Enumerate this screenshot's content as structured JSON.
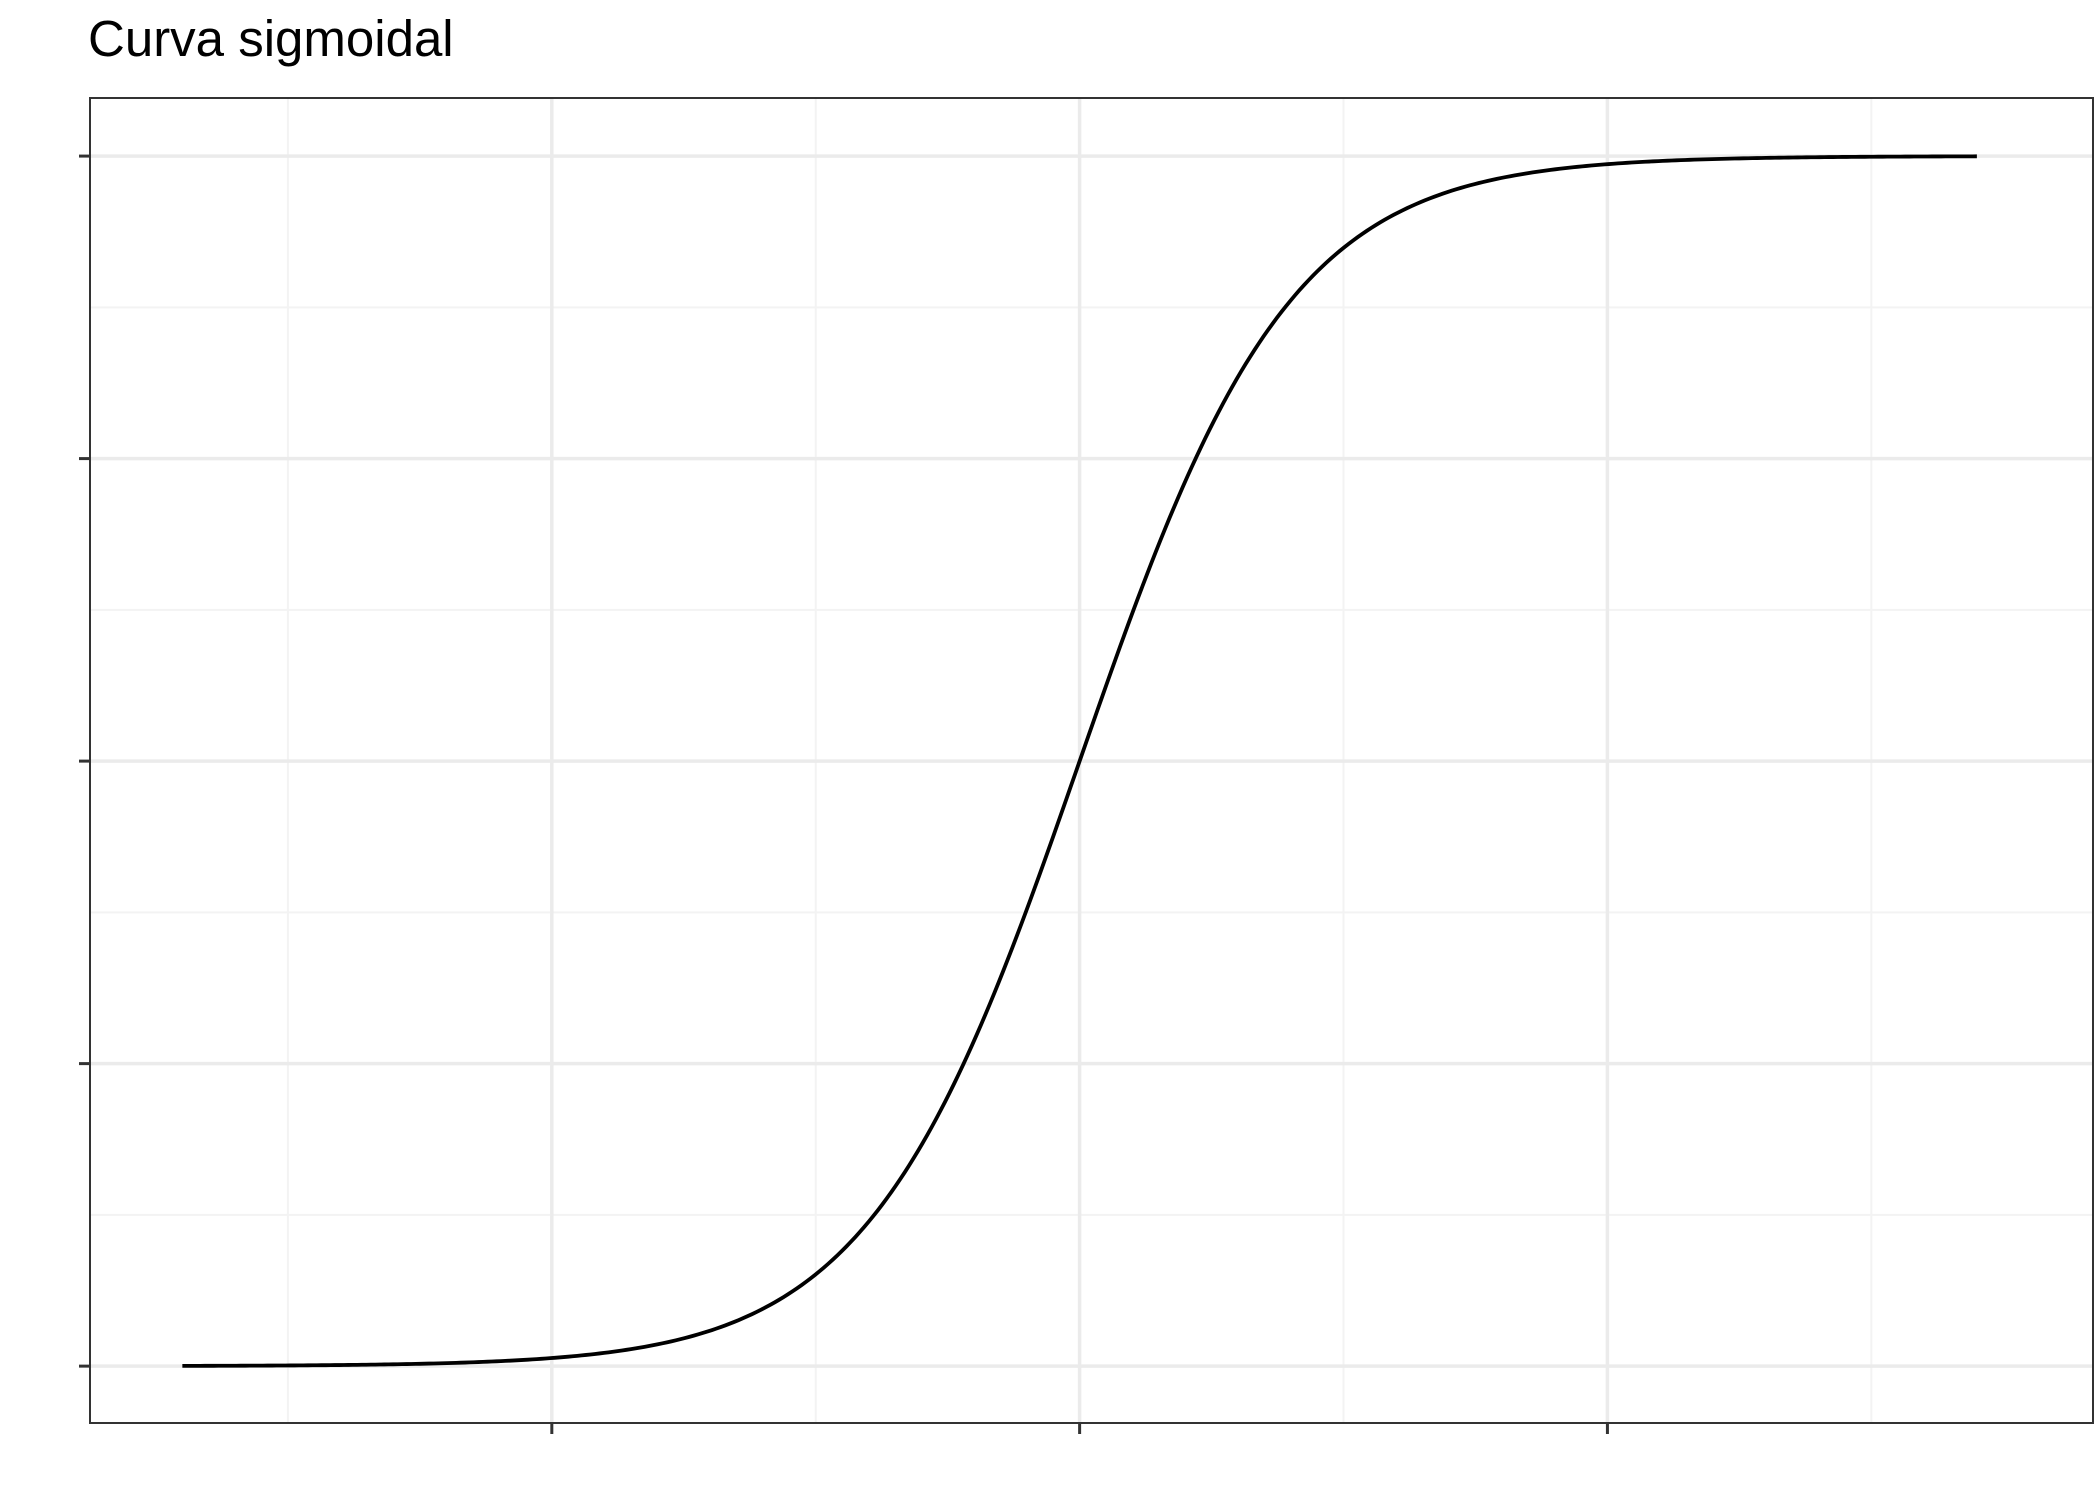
{
  "chart_data": {
    "type": "line",
    "title": "Curva sigmoidal",
    "subtitle": "",
    "xlabel": "",
    "ylabel": "",
    "x_major_ticks": [
      -5,
      0,
      5
    ],
    "x_minor_ticks": [
      -7.5,
      -2.5,
      2.5,
      7.5
    ],
    "y_major_ticks": [
      0,
      0.25,
      0.5,
      0.75,
      1
    ],
    "y_minor_ticks": [
      0.125,
      0.375,
      0.625,
      0.875
    ],
    "xlim": [
      -9.375,
      9.6
    ],
    "ylim": [
      -0.047,
      1.048
    ],
    "grid": true,
    "legend": "none",
    "series": [
      {
        "name": "",
        "color": "#000000",
        "x": [
          -8.5,
          -8,
          -7.5,
          -7,
          -6.5,
          -6,
          -5.5,
          -5,
          -4.5,
          -4,
          -3.5,
          -3,
          -2.5,
          -2,
          -1.5,
          -1,
          -0.5,
          0,
          0.5,
          1,
          1.5,
          2,
          2.5,
          3,
          3.5,
          4,
          4.5,
          5,
          5.5,
          6,
          6.5,
          7,
          7.5,
          8,
          8.5
        ],
        "y": [
          0.0002,
          0.0003,
          0.0006,
          0.0009,
          0.0015,
          0.0025,
          0.0041,
          0.0067,
          0.011,
          0.018,
          0.0293,
          0.0474,
          0.0759,
          0.1192,
          0.1824,
          0.2689,
          0.3775,
          0.5,
          0.6225,
          0.7311,
          0.8176,
          0.8808,
          0.9241,
          0.9526,
          0.9707,
          0.982,
          0.989,
          0.9933,
          0.9959,
          0.9975,
          0.9985,
          0.9991,
          0.9994,
          0.9997,
          0.9998
        ]
      }
    ]
  },
  "colors": {
    "background": "#ffffff",
    "panel_border": "#333333",
    "grid_major": "#ebebeb",
    "grid_minor": "#f3f3f3",
    "tick": "#333333",
    "line": "#000000"
  }
}
